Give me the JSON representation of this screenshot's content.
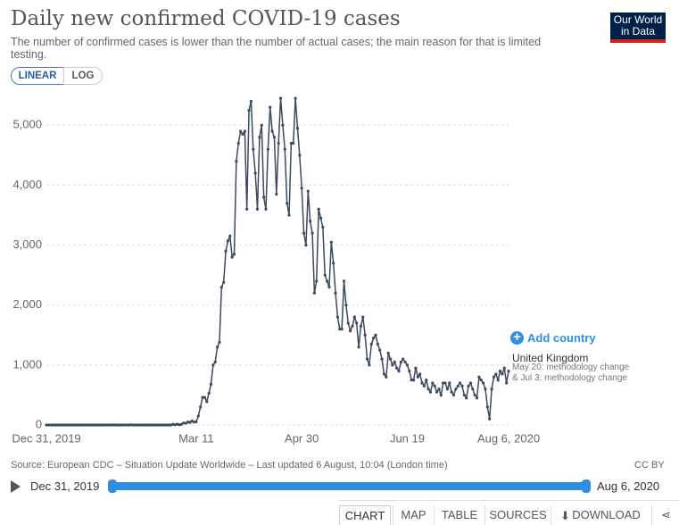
{
  "chart_data": {
    "type": "line",
    "title": "Daily new confirmed COVID-19 cases",
    "subtitle": "The number of confirmed cases is lower than the number of actual cases; the main reason for that is limited testing.",
    "source": "Source: European CDC – Situation Update Worldwide – Last updated 6 August, 10:04 (London time)",
    "license": "CC BY",
    "annotation": "May 20: methodology change & Jul 3: methodology change",
    "categories": [
      "Dec 31, 2019",
      null,
      null,
      null,
      null,
      null,
      null,
      null,
      null,
      null,
      null,
      null,
      null,
      null,
      null,
      null,
      null,
      null,
      null,
      null,
      null,
      null,
      null,
      null,
      null,
      null,
      null,
      null,
      null,
      null,
      null,
      null,
      null,
      null,
      null,
      null,
      null,
      null,
      null,
      null,
      null,
      null,
      null,
      null,
      null,
      null,
      null,
      null,
      null,
      null,
      null,
      null,
      null,
      null,
      null,
      null,
      null,
      null,
      null,
      null,
      null,
      null,
      null,
      null,
      null,
      null,
      null,
      null,
      null,
      null,
      null,
      "Mar 11",
      null,
      null,
      null,
      null,
      null,
      null,
      null,
      null,
      null,
      null,
      null,
      null,
      null,
      null,
      null,
      null,
      null,
      null,
      null,
      null,
      null,
      null,
      null,
      null,
      null,
      null,
      null,
      null,
      null,
      null,
      null,
      null,
      null,
      null,
      null,
      null,
      null,
      null,
      null,
      null,
      null,
      null,
      null,
      null,
      null,
      null,
      null,
      null,
      null,
      "Apr 30",
      null,
      null,
      null,
      null,
      null,
      null,
      null,
      null,
      null,
      null,
      null,
      null,
      null,
      null,
      null,
      null,
      null,
      null,
      null,
      null,
      null,
      null,
      null,
      null,
      null,
      null,
      null,
      null,
      null,
      null,
      null,
      null,
      null,
      null,
      null,
      null,
      null,
      null,
      null,
      null,
      null,
      null,
      null,
      null,
      null,
      null,
      null,
      null,
      null,
      "Jun 19",
      null,
      null,
      null,
      null,
      null,
      null,
      null,
      null,
      null,
      null,
      null,
      null,
      null,
      null,
      null,
      null,
      null,
      null,
      null,
      null,
      null,
      null,
      null,
      null,
      null,
      null,
      null,
      null,
      null,
      null,
      null,
      null,
      null,
      null,
      null,
      null,
      null,
      null,
      null,
      null,
      null,
      null,
      null,
      null,
      null,
      null,
      null,
      "Aug 6, 2020"
    ],
    "series": [
      {
        "name": "United Kingdom",
        "color": "#3b4a5f",
        "values": [
          0,
          0,
          0,
          0,
          0,
          0,
          0,
          0,
          0,
          0,
          0,
          0,
          0,
          0,
          0,
          0,
          0,
          0,
          0,
          0,
          0,
          0,
          0,
          0,
          0,
          0,
          0,
          0,
          0,
          0,
          0,
          2,
          0,
          0,
          0,
          0,
          0,
          1,
          0,
          0,
          3,
          0,
          0,
          0,
          0,
          0,
          0,
          0,
          0,
          0,
          0,
          0,
          0,
          0,
          0,
          0,
          1,
          0,
          0,
          0,
          12,
          4,
          13,
          4,
          11,
          34,
          29,
          48,
          43,
          67,
          48,
          54,
          150,
          300,
          460,
          460,
          390,
          530,
          680,
          1000,
          1050,
          1300,
          1380,
          2300,
          2380,
          2900,
          3070,
          3150,
          2800,
          2850,
          4400,
          4700,
          4900,
          4850,
          4900,
          3600,
          5250,
          5400,
          4600,
          4200,
          3600,
          4800,
          5000,
          3800,
          3600,
          4600,
          5300,
          4900,
          4800,
          3850,
          4700,
          5450,
          5000,
          4600,
          3700,
          3500,
          4700,
          4700,
          5450,
          4950,
          4500,
          3950,
          3200,
          3000,
          3900,
          3400,
          3200,
          2200,
          2400,
          3600,
          3450,
          3300,
          2500,
          2400,
          2300,
          3050,
          2700,
          2200,
          1800,
          1600,
          1600,
          2400,
          2000,
          1700,
          1570,
          1650,
          1800,
          1700,
          1300,
          1650,
          1800,
          1500,
          1100,
          1000,
          1350,
          1450,
          1500,
          1350,
          1250,
          1100,
          850,
          800,
          1200,
          1100,
          1000,
          1050,
          950,
          900,
          1050,
          1100,
          1050,
          1000,
          900,
          750,
          750,
          950,
          800,
          850,
          700,
          650,
          750,
          600,
          550,
          700,
          650,
          550,
          600,
          500,
          700,
          700,
          600,
          700,
          550,
          500,
          600,
          650,
          700,
          650,
          500,
          450,
          650,
          700,
          600,
          500,
          450,
          800,
          750,
          700,
          600,
          300,
          100,
          600,
          800,
          850,
          750,
          900,
          850,
          950,
          700,
          900
        ]
      }
    ],
    "ylim": [
      0,
      5600
    ],
    "yticks": [
      0,
      {
        "value": 1000,
        "label": "1,000"
      },
      {
        "value": 2000,
        "label": "2,000"
      },
      {
        "value": 3000,
        "label": "3,000"
      },
      {
        "value": 4000,
        "label": "4,000"
      },
      {
        "value": 5000,
        "label": "5,000"
      }
    ],
    "grid": true
  },
  "ui": {
    "logo": "Our World in Data",
    "scale_buttons": [
      "LINEAR",
      "LOG"
    ],
    "add_country": "Add country",
    "tabs": [
      "CHART",
      "MAP",
      "TABLE",
      "SOURCES",
      "DOWNLOAD"
    ]
  }
}
